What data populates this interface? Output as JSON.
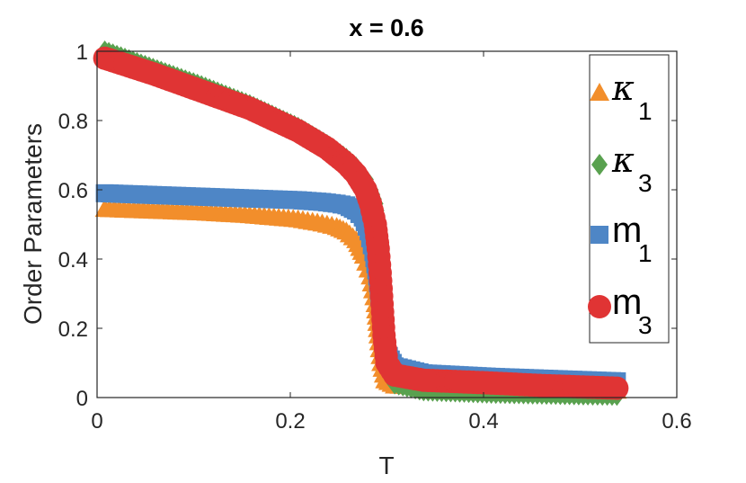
{
  "chart_data": {
    "type": "scatter",
    "title": "x = 0.6",
    "xlabel": "T",
    "ylabel": "Order Parameters",
    "xlim": [
      0,
      0.6
    ],
    "ylim": [
      0,
      1
    ],
    "xticks": [
      "0",
      "0.2",
      "0.4",
      "0.6"
    ],
    "yticks": [
      "0",
      "0.2",
      "0.4",
      "0.6",
      "0.8",
      "1"
    ],
    "grid": false,
    "legend_position": "top-right",
    "series": [
      {
        "name": "κ",
        "subscript": "1",
        "marker": "triangle",
        "color": "#F28E2B",
        "points": [
          [
            0.0,
            0.545
          ],
          [
            0.05,
            0.54
          ],
          [
            0.1,
            0.535
          ],
          [
            0.15,
            0.527
          ],
          [
            0.2,
            0.515
          ],
          [
            0.225,
            0.503
          ],
          [
            0.24,
            0.493
          ],
          [
            0.25,
            0.48
          ],
          [
            0.26,
            0.455
          ],
          [
            0.268,
            0.41
          ],
          [
            0.275,
            0.35
          ],
          [
            0.28,
            0.27
          ],
          [
            0.283,
            0.18
          ],
          [
            0.286,
            0.1
          ],
          [
            0.29,
            0.05
          ],
          [
            0.3,
            0.035
          ],
          [
            0.35,
            0.03
          ],
          [
            0.4,
            0.028
          ],
          [
            0.45,
            0.025
          ],
          [
            0.5,
            0.022
          ],
          [
            0.53,
            0.02
          ]
        ]
      },
      {
        "name": "κ",
        "subscript": "3",
        "marker": "diamond",
        "color": "#59A14F",
        "points": [
          [
            0.0,
            1.0
          ],
          [
            0.05,
            0.95
          ],
          [
            0.1,
            0.9
          ],
          [
            0.15,
            0.845
          ],
          [
            0.2,
            0.78
          ],
          [
            0.23,
            0.73
          ],
          [
            0.25,
            0.69
          ],
          [
            0.26,
            0.665
          ],
          [
            0.27,
            0.63
          ],
          [
            0.275,
            0.6
          ],
          [
            0.28,
            0.56
          ],
          [
            0.283,
            0.5
          ],
          [
            0.286,
            0.43
          ],
          [
            0.288,
            0.36
          ],
          [
            0.29,
            0.28
          ],
          [
            0.292,
            0.2
          ],
          [
            0.295,
            0.1
          ],
          [
            0.3,
            0.04
          ],
          [
            0.33,
            0.02
          ],
          [
            0.4,
            0.013
          ],
          [
            0.5,
            0.008
          ],
          [
            0.53,
            0.007
          ]
        ]
      },
      {
        "name": "m",
        "subscript": "1",
        "marker": "square",
        "color": "#4E86C6",
        "points": [
          [
            0.0,
            0.59
          ],
          [
            0.05,
            0.585
          ],
          [
            0.1,
            0.58
          ],
          [
            0.15,
            0.575
          ],
          [
            0.2,
            0.57
          ],
          [
            0.225,
            0.565
          ],
          [
            0.24,
            0.56
          ],
          [
            0.25,
            0.555
          ],
          [
            0.26,
            0.54
          ],
          [
            0.267,
            0.52
          ],
          [
            0.273,
            0.48
          ],
          [
            0.278,
            0.42
          ],
          [
            0.282,
            0.35
          ],
          [
            0.285,
            0.27
          ],
          [
            0.288,
            0.2
          ],
          [
            0.292,
            0.13
          ],
          [
            0.3,
            0.09
          ],
          [
            0.33,
            0.07
          ],
          [
            0.4,
            0.06
          ],
          [
            0.45,
            0.055
          ],
          [
            0.5,
            0.05
          ],
          [
            0.53,
            0.047
          ]
        ]
      },
      {
        "name": "m",
        "subscript": "3",
        "marker": "circle",
        "color": "#E03434",
        "points": [
          [
            0.0,
            0.98
          ],
          [
            0.05,
            0.935
          ],
          [
            0.1,
            0.885
          ],
          [
            0.15,
            0.835
          ],
          [
            0.2,
            0.77
          ],
          [
            0.23,
            0.72
          ],
          [
            0.25,
            0.675
          ],
          [
            0.26,
            0.645
          ],
          [
            0.27,
            0.6
          ],
          [
            0.275,
            0.56
          ],
          [
            0.28,
            0.5
          ],
          [
            0.283,
            0.43
          ],
          [
            0.285,
            0.36
          ],
          [
            0.287,
            0.27
          ],
          [
            0.289,
            0.18
          ],
          [
            0.292,
            0.1
          ],
          [
            0.3,
            0.065
          ],
          [
            0.33,
            0.05
          ],
          [
            0.4,
            0.042
          ],
          [
            0.45,
            0.035
          ],
          [
            0.5,
            0.03
          ],
          [
            0.53,
            0.027
          ]
        ]
      }
    ]
  }
}
